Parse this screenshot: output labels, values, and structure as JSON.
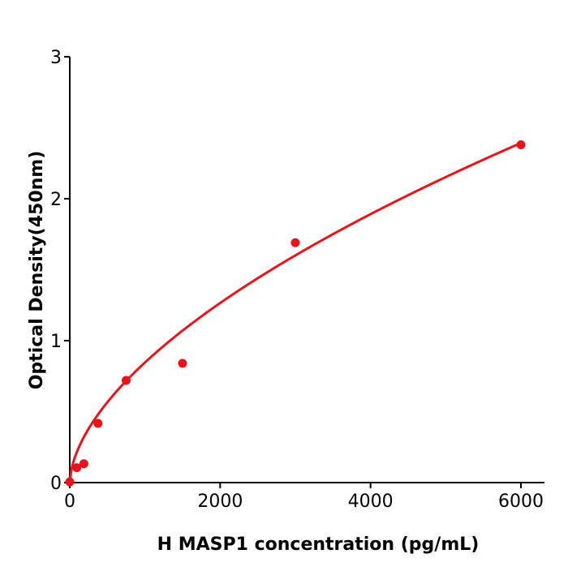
{
  "chart_data": {
    "type": "scatter",
    "title": "",
    "xlabel": "H  MASP1 concentration (pg/mL)",
    "ylabel": "Optical Density(450nm)",
    "xlim": [
      0,
      6300
    ],
    "ylim": [
      0,
      3
    ],
    "xticks": [
      "0",
      "2000",
      "4000",
      "6000"
    ],
    "yticks": [
      "0",
      "1",
      "2",
      "3"
    ],
    "grid": false,
    "points": {
      "x": [
        0,
        93.75,
        187.5,
        375,
        750,
        1500,
        3000,
        6000
      ],
      "y": [
        0.005,
        0.105,
        0.133,
        0.417,
        0.72,
        0.84,
        1.69,
        2.38
      ]
    },
    "fit": {
      "model": "power",
      "a": 0.0154,
      "b": 0.58,
      "x_range": [
        0,
        6000
      ]
    },
    "color": "#e8141b"
  }
}
